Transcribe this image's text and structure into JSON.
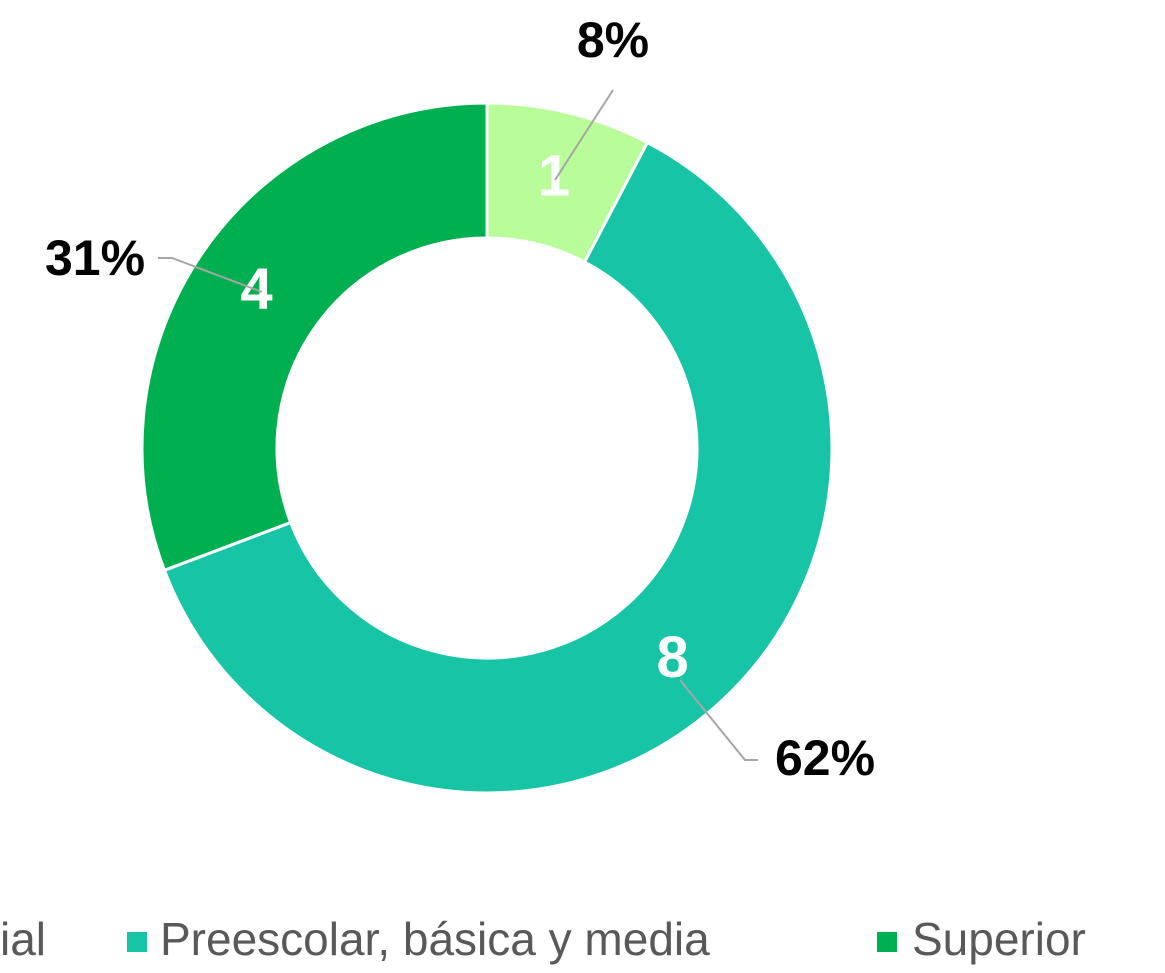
{
  "chart_data": {
    "type": "donut",
    "categories": [
      "ial",
      "Preescolar, básica y media",
      "Superior"
    ],
    "values": [
      1,
      8,
      4
    ],
    "colors": [
      "#b9fc9a",
      "#17c5a6",
      "#00b050"
    ],
    "percentages": [
      8,
      62,
      31
    ],
    "percentage_labels": [
      "8%",
      "62%",
      "31%"
    ],
    "legend": "bottom"
  }
}
